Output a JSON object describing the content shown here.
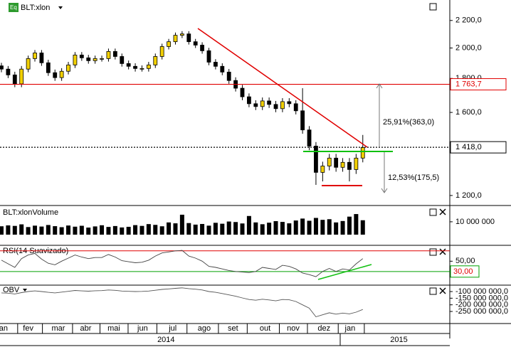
{
  "chart_data": [
    {
      "type": "candlestick",
      "title": "BLT:xlon",
      "log": true,
      "ylim": [
        1162,
        2350
      ],
      "yticks": [
        {
          "value": 1200,
          "label": "1 200,0"
        },
        {
          "value": 1600,
          "label": "1 600,0"
        },
        {
          "value": 1800,
          "label": "1 800,0"
        },
        {
          "value": 2000,
          "label": "2 000,0"
        },
        {
          "value": 2200,
          "label": "2 200,0"
        }
      ],
      "up_color": "#f2d000",
      "down_color": "#000000",
      "open": [
        1880,
        1859,
        1822,
        1766,
        1859,
        1928,
        1966,
        1900,
        1836,
        1805,
        1845,
        1886,
        1952,
        1933,
        1914,
        1928,
        1928,
        1976,
        1942,
        1895,
        1877,
        1863,
        1863,
        1886,
        1942,
        2010,
        2044,
        2090,
        2100,
        2044,
        2020,
        1981,
        1904,
        1877,
        1840,
        1787,
        1740,
        1689,
        1649,
        1633,
        1665,
        1645,
        1621,
        1661,
        1649,
        1609,
        1506,
        1424,
        1300,
        1329,
        1366,
        1323,
        1346,
        1313,
        1366
      ],
      "high": [
        1900,
        1879,
        1842,
        1879,
        1948,
        1986,
        1986,
        1920,
        1856,
        1865,
        1906,
        1972,
        1972,
        1953,
        1948,
        1948,
        1996,
        1996,
        1962,
        1915,
        1897,
        1883,
        1906,
        1962,
        2030,
        2064,
        2110,
        2120,
        2120,
        2064,
        2040,
        2001,
        1924,
        1897,
        1860,
        1807,
        1760,
        1709,
        1669,
        1685,
        1685,
        1665,
        1681,
        1681,
        1669,
        1740,
        1526,
        1444,
        1349,
        1386,
        1386,
        1366,
        1366,
        1386,
        1480
      ],
      "low": [
        1839,
        1802,
        1746,
        1746,
        1839,
        1908,
        1880,
        1816,
        1785,
        1785,
        1825,
        1866,
        1913,
        1894,
        1894,
        1908,
        1908,
        1922,
        1875,
        1857,
        1843,
        1843,
        1843,
        1866,
        1922,
        1990,
        2024,
        2070,
        2024,
        2000,
        1961,
        1884,
        1857,
        1820,
        1767,
        1720,
        1669,
        1629,
        1613,
        1613,
        1625,
        1601,
        1601,
        1629,
        1589,
        1486,
        1404,
        1245,
        1260,
        1309,
        1303,
        1303,
        1260,
        1293,
        1346
      ],
      "close": [
        1859,
        1822,
        1766,
        1859,
        1928,
        1966,
        1900,
        1836,
        1805,
        1845,
        1886,
        1952,
        1933,
        1914,
        1928,
        1928,
        1976,
        1942,
        1895,
        1877,
        1863,
        1863,
        1886,
        1942,
        2010,
        2044,
        2090,
        2100,
        2044,
        2020,
        1981,
        1904,
        1877,
        1840,
        1787,
        1740,
        1689,
        1649,
        1633,
        1665,
        1645,
        1621,
        1661,
        1649,
        1609,
        1506,
        1424,
        1300,
        1329,
        1366,
        1323,
        1346,
        1313,
        1366,
        1417
      ],
      "price_lines": [
        {
          "value": 1763.7,
          "label": "1 763,7",
          "color": "#e00000"
        },
        {
          "value": 1418.0,
          "label": "1 418,0",
          "color": "#000000"
        }
      ],
      "annotations": [
        "25,91%(363,0)",
        "12,53%(175,5)"
      ]
    },
    {
      "type": "bar",
      "title": "BLT:xlonVolume",
      "color": "#000000",
      "ylim": [
        0,
        21000000
      ],
      "yticks": [
        {
          "value": 10000000,
          "label": "10 000 000"
        }
      ],
      "values": [
        6500000,
        7200000,
        6800000,
        8000000,
        5900000,
        7000000,
        6300000,
        7500000,
        6600000,
        5800000,
        7100000,
        6200000,
        6900000,
        5500000,
        6400000,
        7300000,
        6000000,
        6700000,
        5600000,
        6100000,
        7400000,
        6800000,
        8200000,
        7600000,
        6500000,
        9500000,
        8800000,
        15500000,
        9000000,
        7800000,
        8300000,
        7000000,
        9200000,
        8500000,
        10200000,
        9800000,
        8700000,
        14500000,
        9500000,
        8100000,
        9300000,
        10500000,
        9900000,
        8800000,
        11000000,
        12500000,
        10800000,
        13000000,
        11500000,
        12000000,
        9500000,
        10600000,
        14000000,
        16000000,
        11200000
      ]
    },
    {
      "type": "line",
      "title": "RSI(14 Suavizado)",
      "color": "#444444",
      "ylim": [
        5,
        78
      ],
      "yticks": [
        {
          "value": 50,
          "label": "50,00"
        }
      ],
      "levels": [
        {
          "value": 70,
          "color": "#e00000"
        },
        {
          "value": 30,
          "label": "30,00",
          "color": "#00a000"
        }
      ],
      "values": [
        52,
        45,
        38,
        55,
        62,
        65,
        54,
        46,
        43,
        50,
        56,
        62,
        58,
        55,
        57,
        57,
        63,
        58,
        51,
        49,
        47,
        48,
        52,
        60,
        66,
        68,
        70,
        71,
        60,
        56,
        50,
        40,
        38,
        35,
        32,
        30,
        29,
        28,
        30,
        38,
        36,
        34,
        42,
        40,
        35,
        27,
        24,
        20,
        30,
        36,
        30,
        35,
        33,
        45,
        55
      ]
    },
    {
      "type": "line",
      "title": "OBV",
      "color": "#555555",
      "ylim": [
        -341000000,
        -57000000
      ],
      "yticks": [
        {
          "value": -100000000,
          "label": "-100 000 000,0"
        },
        {
          "value": -150000000,
          "label": "-150 000 000,0"
        },
        {
          "value": -200000000,
          "label": "-200 000 000,0"
        },
        {
          "value": -250000000,
          "label": "-250 000 000,0"
        }
      ],
      "values": [
        -110000000,
        -112000000,
        -118000000,
        -108000000,
        -100000000,
        -95000000,
        -100000000,
        -106000000,
        -110000000,
        -104000000,
        -98000000,
        -92000000,
        -95000000,
        -97000000,
        -94000000,
        -93000000,
        -88000000,
        -91000000,
        -96000000,
        -98000000,
        -100000000,
        -99000000,
        -96000000,
        -90000000,
        -84000000,
        -80000000,
        -76000000,
        -72000000,
        -78000000,
        -82000000,
        -88000000,
        -100000000,
        -106000000,
        -115000000,
        -125000000,
        -135000000,
        -148000000,
        -160000000,
        -165000000,
        -158000000,
        -163000000,
        -170000000,
        -160000000,
        -162000000,
        -175000000,
        -200000000,
        -225000000,
        -290000000,
        -275000000,
        -260000000,
        -270000000,
        -262000000,
        -268000000,
        -255000000,
        -235000000
      ]
    }
  ],
  "x_axis": {
    "xlim": [
      0,
      67
    ],
    "xticks": [
      {
        "value": 0.3,
        "label": "an"
      },
      {
        "value": 4.0,
        "label": "fev"
      },
      {
        "value": 8.5,
        "label": "mar"
      },
      {
        "value": 12.6,
        "label": "abr"
      },
      {
        "value": 16.8,
        "label": "mai"
      },
      {
        "value": 21.1,
        "label": "jun"
      },
      {
        "value": 25.6,
        "label": "jul"
      },
      {
        "value": 30.3,
        "label": "ago"
      },
      {
        "value": 34.6,
        "label": "set"
      },
      {
        "value": 39.4,
        "label": "out"
      },
      {
        "value": 43.6,
        "label": "nov"
      },
      {
        "value": 48.2,
        "label": "dez"
      },
      {
        "value": 52.1,
        "label": "jan"
      }
    ],
    "years": [
      {
        "value": 24.6,
        "label": "2014"
      },
      {
        "value": 59.4,
        "label": "2015"
      }
    ]
  }
}
